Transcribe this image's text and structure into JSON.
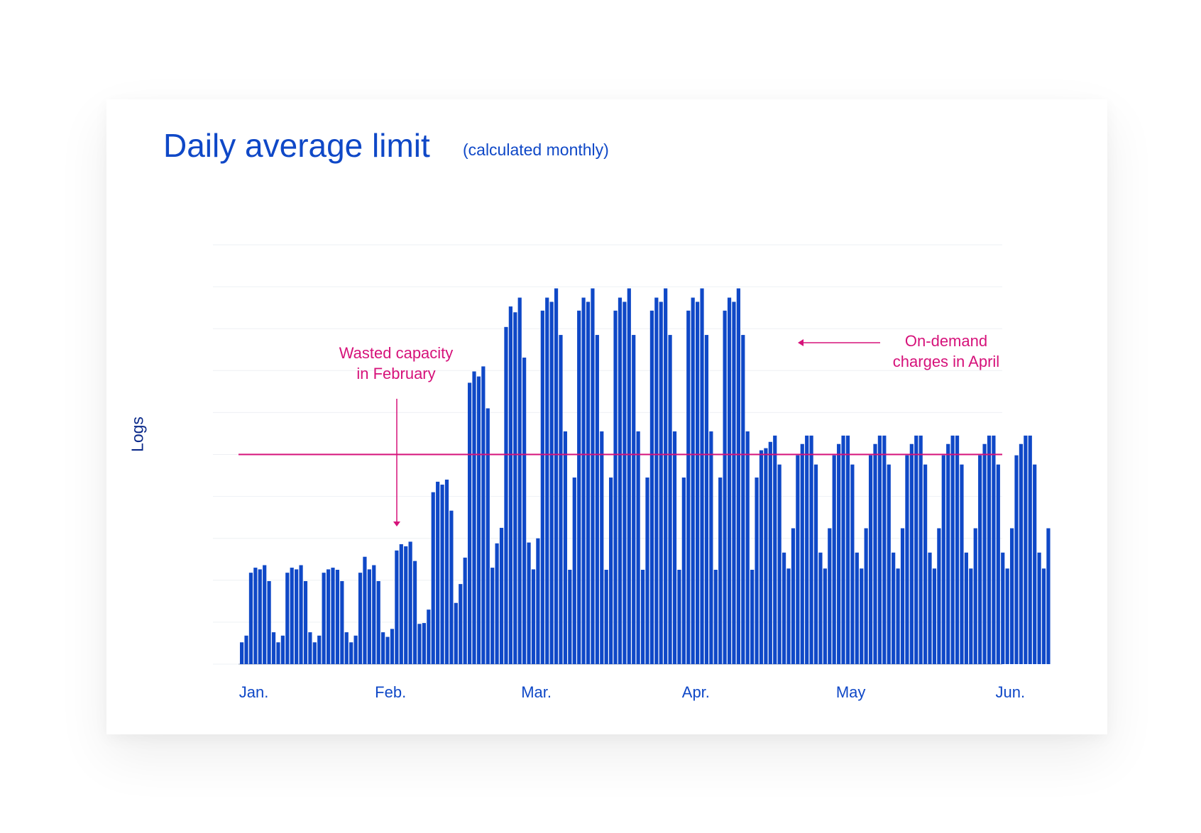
{
  "chart_data": {
    "type": "bar",
    "title": "Daily average limit",
    "subtitle": "(calculated monthly)",
    "ylabel": "Logs",
    "ylim": [
      0,
      10000
    ],
    "y_ticks": [
      0,
      1000,
      2000,
      3000,
      4000,
      5000,
      6000,
      7000,
      8000,
      9000,
      10000
    ],
    "month_labels": [
      {
        "label": "Jan.",
        "day": 1
      },
      {
        "label": "Feb.",
        "day": 31
      },
      {
        "label": "Mar.",
        "day": 63
      },
      {
        "label": "Apr.",
        "day": 98
      },
      {
        "label": "May",
        "day": 132
      },
      {
        "label": "Jun.",
        "day": 167
      }
    ],
    "daily_average_limit": 5000,
    "limit_line_color": "#d6127a",
    "bar_color": "#0f48c7",
    "values": [
      520,
      680,
      2180,
      2300,
      2260,
      2360,
      1980,
      760,
      520,
      680,
      2180,
      2300,
      2260,
      2360,
      1980,
      760,
      520,
      680,
      2180,
      2260,
      2300,
      2250,
      1980,
      760,
      520,
      680,
      2180,
      2560,
      2260,
      2360,
      1980,
      760,
      650,
      840,
      2710,
      2860,
      2810,
      2920,
      2460,
      960,
      980,
      1300,
      4100,
      4350,
      4280,
      4400,
      3660,
      1460,
      1910,
      2540,
      6710,
      6980,
      6860,
      7100,
      6100,
      2300,
      2880,
      3250,
      8040,
      8530,
      8390,
      8740,
      7310,
      2900,
      2260,
      3000,
      8430,
      8740,
      8640,
      8960,
      7850,
      5550,
      2250,
      4450,
      8430,
      8740,
      8640,
      8960,
      7850,
      5550,
      2250,
      4450,
      8430,
      8740,
      8640,
      8960,
      7850,
      5550,
      2250,
      4450,
      8430,
      8740,
      8640,
      8960,
      7850,
      5550,
      2250,
      4450,
      8430,
      8740,
      8640,
      8960,
      7850,
      5550,
      2250,
      4450,
      8430,
      8740,
      8640,
      8960,
      7850,
      5550,
      2250,
      4450,
      5100,
      5150,
      5300,
      5450,
      4760,
      2660,
      2280,
      3240,
      4980,
      5250,
      5450,
      5450,
      4760,
      2660,
      2280,
      3240,
      4980,
      5250,
      5450,
      5450,
      4760,
      2660,
      2280,
      3240,
      4980,
      5250,
      5450,
      5450,
      4760,
      2660,
      2280,
      3240,
      4980,
      5250,
      5450,
      5450,
      4760,
      2660,
      2280,
      3240,
      4980,
      5250,
      5450,
      5450,
      4760,
      2660,
      2280,
      3240,
      4980,
      5250,
      5450,
      5450,
      4760,
      2660,
      2280,
      3240,
      4980,
      5250,
      5450,
      5450,
      4760,
      2660,
      2280,
      3240
    ],
    "annotations": [
      {
        "id": "wasted",
        "lines": [
          "Wasted capacity",
          "in February"
        ]
      },
      {
        "id": "ondemand",
        "lines": [
          "On-demand",
          "charges in April"
        ]
      }
    ]
  }
}
